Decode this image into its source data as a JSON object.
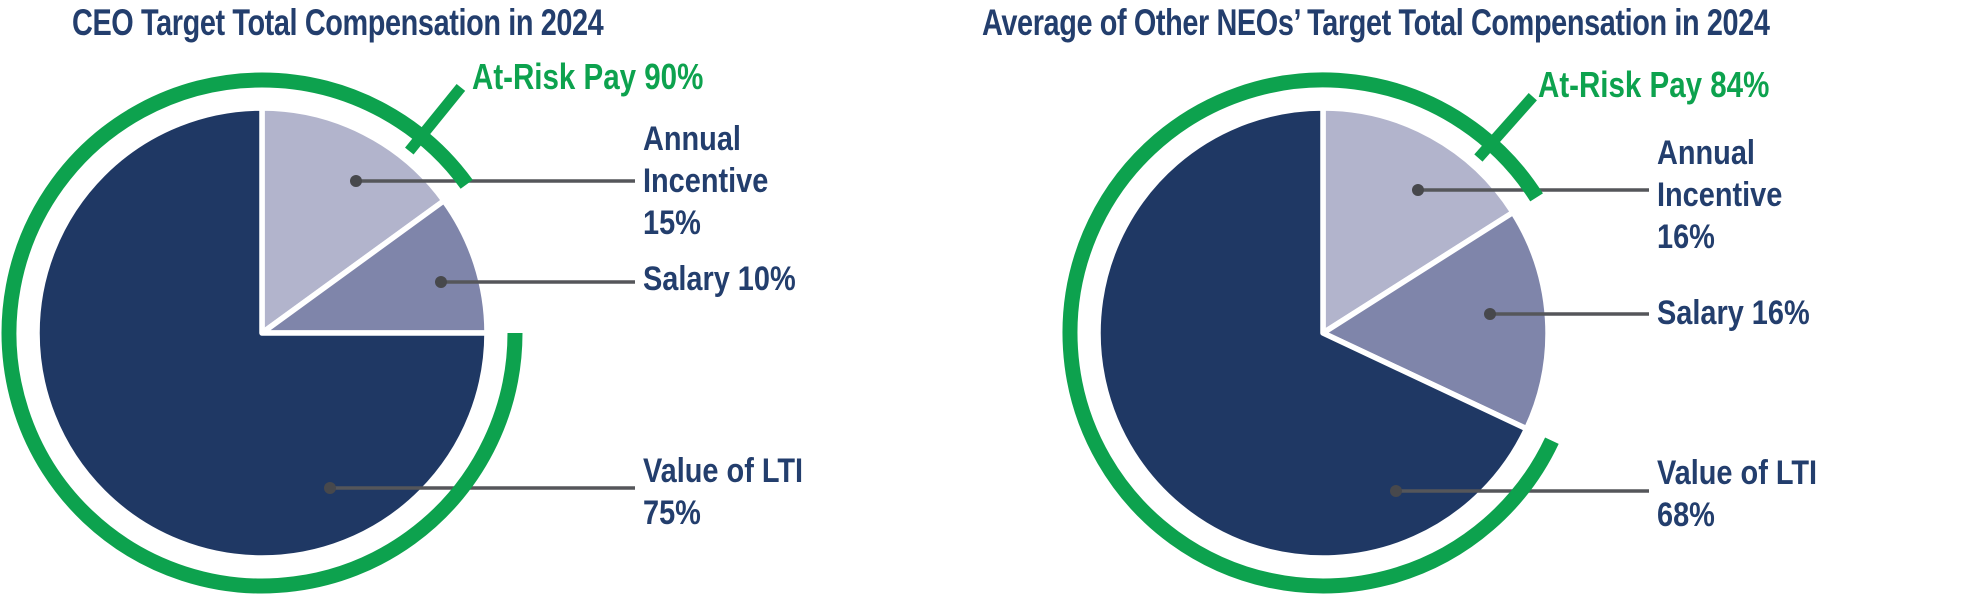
{
  "colors": {
    "navy_slice": "#1f3864",
    "lavender_slice": "#b2b4cc",
    "slate_slice": "#7f85aa",
    "green": "#0da24e",
    "text_navy": "#233e6d",
    "leader_line": "#55565a",
    "leader_dot": "#47484c",
    "separator_white": "#ffffff"
  },
  "chart_data": [
    {
      "type": "pie",
      "title": "CEO Target Total Compensation in 2024",
      "categories": [
        "Annual Incentive",
        "Salary",
        "Value of LTI"
      ],
      "values": [
        15,
        10,
        75
      ],
      "slice_colors": [
        "#b2b4cc",
        "#7f85aa",
        "#1f3864"
      ],
      "slice_label_lines": [
        [
          "Annual",
          "Incentive",
          "15%"
        ],
        [
          "Salary 10%"
        ],
        [
          "Value of LTI",
          "75%"
        ]
      ],
      "start_angle": "12 o'clock",
      "direction": "clockwise",
      "legend": false,
      "annotation": {
        "label": "At-Risk Pay 90%",
        "pct": 90,
        "covers": [
          "Annual Incentive",
          "Value of LTI"
        ],
        "style": "green arc around pie with gap over Salary slice"
      }
    },
    {
      "type": "pie",
      "title": "Average of Other NEOs’ Target Total Compensation in 2024",
      "categories": [
        "Annual Incentive",
        "Salary",
        "Value of LTI"
      ],
      "values": [
        16,
        16,
        68
      ],
      "slice_colors": [
        "#b2b4cc",
        "#7f85aa",
        "#1f3864"
      ],
      "slice_label_lines": [
        [
          "Annual",
          "Incentive",
          "16%"
        ],
        [
          "Salary 16%"
        ],
        [
          "Value of LTI",
          "68%"
        ]
      ],
      "start_angle": "12 o'clock",
      "direction": "clockwise",
      "legend": false,
      "annotation": {
        "label": "At-Risk Pay 84%",
        "pct": 84,
        "covers": [
          "Annual Incentive",
          "Value of LTI"
        ],
        "style": "green arc around pie with gap over Salary slice"
      }
    }
  ]
}
